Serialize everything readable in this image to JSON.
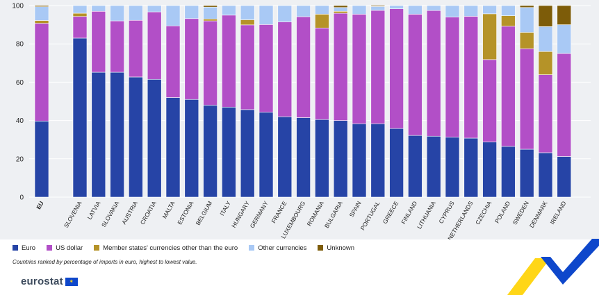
{
  "chart_data": {
    "type": "bar",
    "stacked": true,
    "orientation": "vertical",
    "categories": [
      "EU",
      "SLOVENIA",
      "LATVIA",
      "SLOVAKIA",
      "AUSTRIA",
      "CROATIA",
      "MALTA",
      "ESTONIA",
      "BELGIUM",
      "ITALY",
      "HUNGARY",
      "GERMANY",
      "FRANCE",
      "LUXEMBOURG",
      "ROMANIA",
      "BULGARIA",
      "SPAIN",
      "PORTUGAL",
      "GREECE",
      "FINLAND",
      "LITHUANIA",
      "CYPRUS",
      "NETHERLANDS",
      "CZECHIA",
      "POLAND",
      "SWEDEN",
      "DENMARK",
      "IRELAND"
    ],
    "gap_after_first": true,
    "ylim": [
      0,
      100
    ],
    "yticks": [
      0,
      20,
      40,
      60,
      80,
      100
    ],
    "grid": true,
    "legend_position": "bottom-left",
    "series": [
      {
        "name": "Euro",
        "color": "#2644a6",
        "values": [
          39.7,
          83.0,
          65.2,
          65.2,
          62.7,
          61.5,
          52.0,
          51.0,
          48.0,
          47.0,
          45.7,
          44.3,
          42.0,
          41.5,
          40.5,
          40.0,
          38.3,
          38.3,
          35.8,
          32.2,
          31.8,
          31.3,
          30.8,
          28.8,
          26.5,
          25.0,
          23.2,
          21.2
        ]
      },
      {
        "name": "US dollar",
        "color": "#b24fc7",
        "values": [
          51.0,
          11.3,
          31.8,
          26.8,
          29.6,
          35.2,
          37.4,
          42.2,
          44.0,
          48.0,
          44.2,
          45.8,
          49.5,
          52.7,
          47.8,
          56.0,
          57.2,
          59.2,
          62.5,
          63.3,
          65.6,
          62.7,
          63.6,
          43.0,
          62.7,
          52.5,
          40.7,
          53.8
        ]
      },
      {
        "name": "Member states' currencies other than the euro",
        "color": "#b59328",
        "values": [
          1.5,
          1.7,
          0.0,
          0.0,
          0.0,
          0.0,
          0.0,
          0.0,
          1.0,
          0.0,
          2.7,
          0.0,
          0.0,
          0.0,
          7.2,
          1.0,
          0.0,
          0.0,
          0.0,
          0.0,
          0.0,
          0.0,
          0.0,
          23.9,
          5.5,
          8.5,
          12.1,
          0.0
        ]
      },
      {
        "name": "Other currencies",
        "color": "#a9c9f5",
        "values": [
          7.2,
          4.0,
          3.0,
          8.0,
          7.7,
          3.3,
          10.6,
          6.8,
          6.2,
          5.0,
          7.4,
          9.9,
          8.5,
          5.8,
          4.5,
          2.0,
          4.5,
          2.0,
          1.7,
          4.5,
          2.6,
          6.0,
          5.6,
          4.3,
          5.3,
          13.0,
          13.0,
          15.0
        ]
      },
      {
        "name": "Unknown",
        "color": "#7d5c09",
        "values": [
          0.6,
          0.0,
          0.0,
          0.0,
          0.0,
          0.0,
          0.0,
          0.0,
          0.8,
          0.0,
          0.0,
          0.0,
          0.0,
          0.0,
          0.0,
          1.0,
          0.0,
          0.5,
          0.0,
          0.0,
          0.0,
          0.0,
          0.0,
          0.0,
          0.0,
          1.0,
          11.0,
          10.0
        ]
      }
    ]
  },
  "note": "Countries ranked by percentage of imports in euro, highest to lowest value.",
  "logo": {
    "text": "eurostat",
    "flag_glyph": "✶"
  },
  "colors": {
    "background": "#eef0f3",
    "grid": "#ffffff",
    "deco_blue": "#0e47cb",
    "deco_yellow": "#ffd617"
  }
}
